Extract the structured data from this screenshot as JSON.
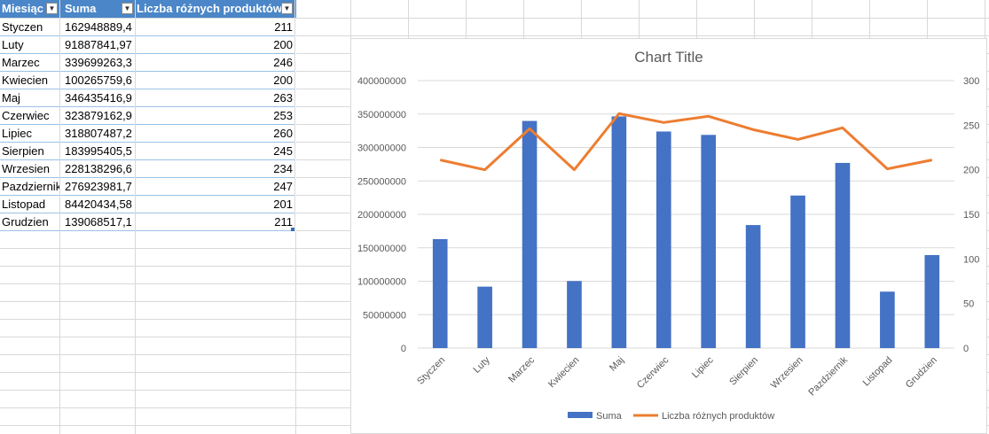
{
  "table": {
    "headers": [
      "Miesiąc",
      "Suma",
      "Liczba różnych produktów"
    ],
    "rows": [
      [
        "Styczen",
        "162948889,4",
        "211"
      ],
      [
        "Luty",
        "91887841,97",
        "200"
      ],
      [
        "Marzec",
        "339699263,3",
        "246"
      ],
      [
        "Kwiecien",
        "100265759,6",
        "200"
      ],
      [
        "Maj",
        "346435416,9",
        "263"
      ],
      [
        "Czerwiec",
        "323879162,9",
        "253"
      ],
      [
        "Lipiec",
        "318807487,2",
        "260"
      ],
      [
        "Sierpien",
        "183995405,5",
        "245"
      ],
      [
        "Wrzesien",
        "228138296,6",
        "234"
      ],
      [
        "Pazdziernik",
        "276923981,7",
        "247"
      ],
      [
        "Listopad",
        "84420434,58",
        "201"
      ],
      [
        "Grudzien",
        "139068517,1",
        "211"
      ]
    ]
  },
  "chart_data": {
    "type": "bar",
    "title": "Chart Title",
    "categories": [
      "Styczen",
      "Luty",
      "Marzec",
      "Kwiecien",
      "Maj",
      "Czerwiec",
      "Lipiec",
      "Sierpien",
      "Wrzesien",
      "Pazdziernik",
      "Listopad",
      "Grudzien"
    ],
    "series": [
      {
        "name": "Suma",
        "type": "bar",
        "axis": "left",
        "color": "#4472c4",
        "values": [
          162948889.4,
          91887841.97,
          339699263.3,
          100265759.6,
          346435416.9,
          323879162.9,
          318807487.2,
          183995405.5,
          228138296.6,
          276923981.7,
          84420434.58,
          139068517.1
        ]
      },
      {
        "name": "Liczba różnych produktów",
        "type": "line",
        "axis": "right",
        "color": "#ed7d31",
        "values": [
          211,
          200,
          246,
          200,
          263,
          253,
          260,
          245,
          234,
          247,
          201,
          211
        ]
      }
    ],
    "y_left": {
      "min": 0,
      "max": 400000000,
      "ticks": [
        "0",
        "50000000",
        "100000000",
        "150000000",
        "200000000",
        "250000000",
        "300000000",
        "350000000",
        "400000000"
      ]
    },
    "y_right": {
      "min": 0,
      "max": 300,
      "ticks": [
        "0",
        "50",
        "100",
        "150",
        "200",
        "250",
        "300"
      ]
    },
    "legend": "bottom",
    "grid": true
  }
}
